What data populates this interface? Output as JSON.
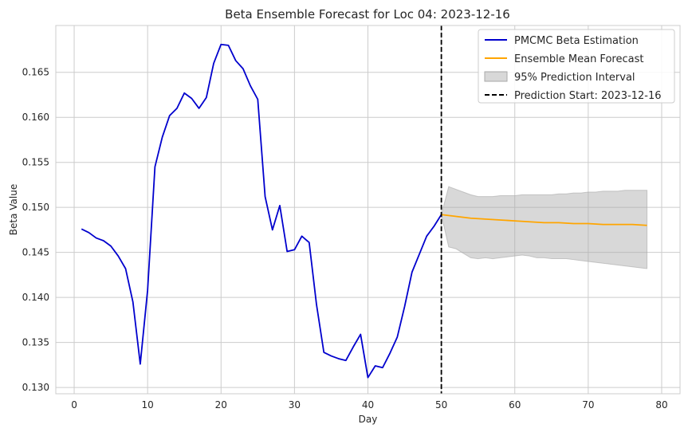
{
  "chart_data": {
    "type": "line",
    "title": "Beta Ensemble Forecast for Loc 04: 2023-12-16",
    "xlabel": "Day",
    "ylabel": "Beta Value",
    "xlim": [
      -2.5,
      82.5
    ],
    "ylim": [
      0.1293,
      0.1702
    ],
    "xticks": [
      0,
      10,
      20,
      30,
      40,
      50,
      60,
      70,
      80
    ],
    "yticks": [
      0.13,
      0.135,
      0.14,
      0.145,
      0.15,
      0.155,
      0.16,
      0.165
    ],
    "ytick_labels": [
      "0.130",
      "0.135",
      "0.140",
      "0.145",
      "0.150",
      "0.155",
      "0.160",
      "0.165"
    ],
    "grid": true,
    "legend_position": "top-right",
    "colors": {
      "estimation": "#0000cd",
      "forecast": "#ffa500",
      "interval": "#a9a9a9",
      "prediction_line": "#000000"
    },
    "series": [
      {
        "name": "PMCMC Beta Estimation",
        "kind": "line",
        "x": [
          1,
          2,
          3,
          4,
          5,
          6,
          7,
          8,
          9,
          10,
          11,
          12,
          13,
          14,
          15,
          16,
          17,
          18,
          19,
          20,
          21,
          22,
          23,
          24,
          25,
          26,
          27,
          28,
          29,
          30,
          31,
          32,
          33,
          34,
          35,
          36,
          37,
          38,
          39,
          40,
          41,
          42,
          43,
          44,
          45,
          46,
          47,
          48,
          49,
          50
        ],
        "y": [
          0.1476,
          0.1472,
          0.1466,
          0.1463,
          0.1457,
          0.1446,
          0.1432,
          0.1395,
          0.1326,
          0.1408,
          0.1545,
          0.1578,
          0.1602,
          0.161,
          0.1627,
          0.1621,
          0.161,
          0.1622,
          0.166,
          0.1681,
          0.168,
          0.1663,
          0.1654,
          0.1635,
          0.162,
          0.1512,
          0.1475,
          0.1502,
          0.1451,
          0.1453,
          0.1468,
          0.1461,
          0.1392,
          0.1339,
          0.1335,
          0.1332,
          0.133,
          0.1345,
          0.1359,
          0.1311,
          0.1324,
          0.1322,
          0.1338,
          0.1356,
          0.139,
          0.1428,
          0.1448,
          0.1468,
          0.1479,
          0.1492
        ]
      },
      {
        "name": "Ensemble Mean Forecast",
        "kind": "line",
        "x": [
          50,
          52,
          54,
          56,
          58,
          60,
          62,
          64,
          66,
          68,
          70,
          72,
          74,
          76,
          78
        ],
        "y": [
          0.1492,
          0.149,
          0.1488,
          0.1487,
          0.1486,
          0.1485,
          0.1484,
          0.1483,
          0.1483,
          0.1482,
          0.1482,
          0.1481,
          0.1481,
          0.1481,
          0.148
        ]
      },
      {
        "name": "95% Prediction Interval",
        "kind": "band",
        "x": [
          50,
          51,
          52,
          53,
          54,
          55,
          56,
          57,
          58,
          59,
          60,
          61,
          62,
          63,
          64,
          65,
          66,
          67,
          68,
          69,
          70,
          71,
          72,
          73,
          74,
          75,
          76,
          77,
          78
        ],
        "lower": [
          0.1492,
          0.1456,
          0.1454,
          0.1449,
          0.1444,
          0.1443,
          0.1444,
          0.1443,
          0.1444,
          0.1445,
          0.1446,
          0.1447,
          0.1446,
          0.1444,
          0.1444,
          0.1443,
          0.1443,
          0.1443,
          0.1442,
          0.1441,
          0.144,
          0.1439,
          0.1438,
          0.1437,
          0.1436,
          0.1435,
          0.1434,
          0.1433,
          0.1432
        ],
        "upper": [
          0.1492,
          0.1523,
          0.152,
          0.1517,
          0.1514,
          0.1512,
          0.1512,
          0.1512,
          0.1513,
          0.1513,
          0.1513,
          0.1514,
          0.1514,
          0.1514,
          0.1514,
          0.1514,
          0.1515,
          0.1515,
          0.1516,
          0.1516,
          0.1517,
          0.1517,
          0.1518,
          0.1518,
          0.1518,
          0.1519,
          0.1519,
          0.1519,
          0.1519
        ]
      },
      {
        "name": "Prediction Start: 2023-12-16",
        "kind": "vline",
        "x": 50
      }
    ]
  }
}
